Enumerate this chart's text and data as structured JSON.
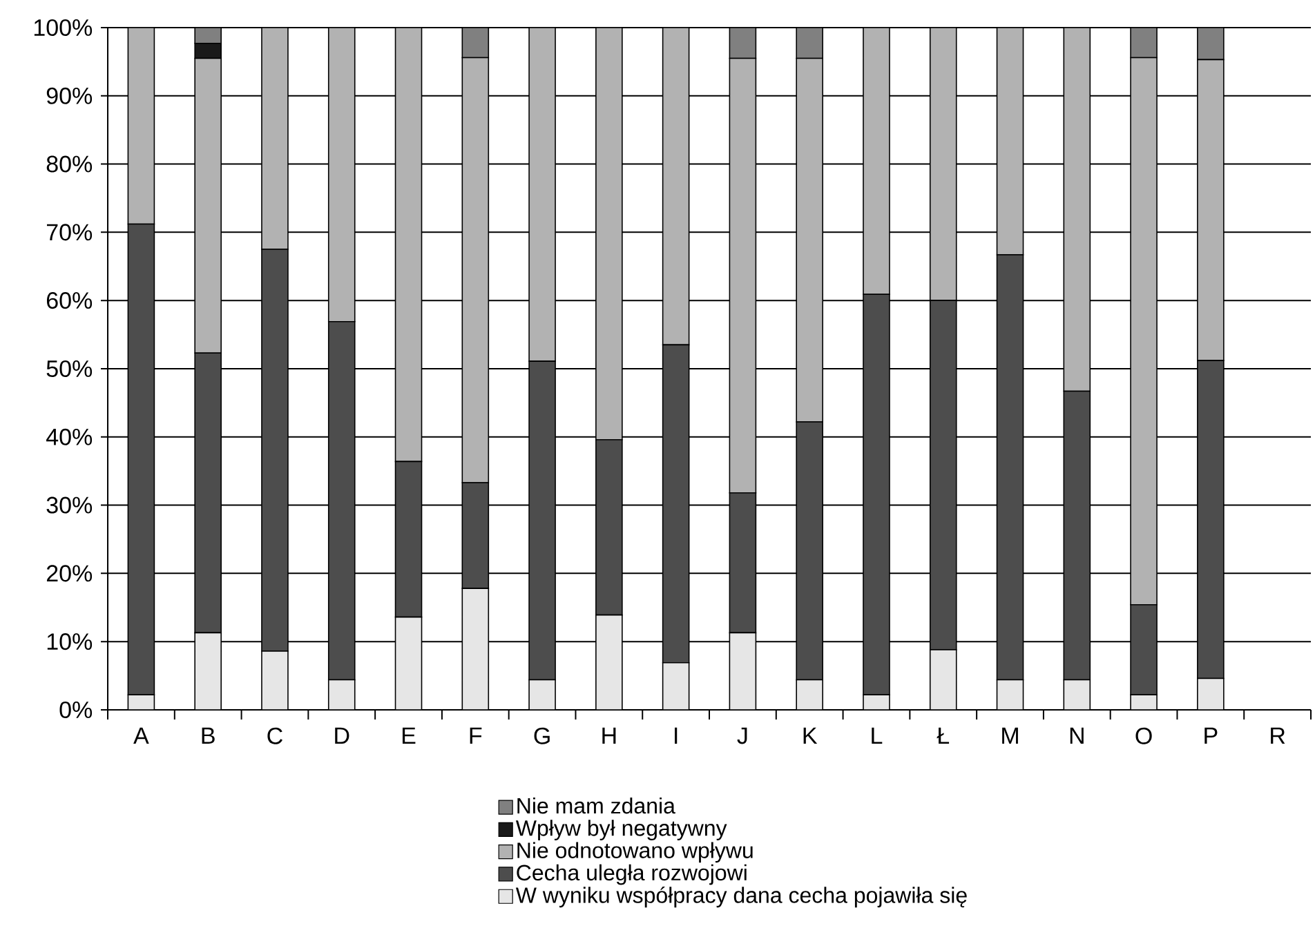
{
  "chart_data": {
    "type": "bar",
    "stacked": true,
    "categories": [
      "A",
      "B",
      "C",
      "D",
      "E",
      "F",
      "G",
      "H",
      "I",
      "J",
      "K",
      "L",
      "Ł",
      "M",
      "N",
      "O",
      "P",
      "R"
    ],
    "series": [
      {
        "name": "W wyniku współpracy dana cecha pojawiła się",
        "color": "#e6e6e6",
        "values": [
          2.2,
          11.3,
          8.6,
          4.4,
          13.6,
          17.8,
          4.4,
          13.9,
          6.9,
          11.3,
          4.4,
          2.2,
          8.8,
          4.4,
          4.4,
          2.2,
          4.6,
          null
        ]
      },
      {
        "name": "Cecha uległa rozwojowi",
        "color": "#4d4d4d",
        "values": [
          69,
          41,
          58.9,
          52.5,
          22.8,
          15.5,
          46.7,
          25.7,
          46.6,
          20.5,
          37.8,
          58.7,
          51.2,
          62.3,
          42.3,
          13.2,
          46.6,
          null
        ]
      },
      {
        "name": "Nie odnotowano wpływu",
        "color": "#b2b2b2",
        "values": [
          28.8,
          43.2,
          32.5,
          43.1,
          63.6,
          62.3,
          48.9,
          60.4,
          46.5,
          63.7,
          53.3,
          39.1,
          40,
          33.3,
          53.3,
          80.2,
          44.1,
          null
        ]
      },
      {
        "name": "Wpływ był negatywny",
        "color": "#1a1a1a",
        "values": [
          0,
          2.2,
          0,
          0,
          0,
          0,
          0,
          0,
          0,
          0,
          0,
          0,
          0,
          0,
          0,
          0,
          0,
          null
        ]
      },
      {
        "name": "Nie mam zdania",
        "color": "#808080",
        "values": [
          0,
          2.3,
          0,
          0,
          0,
          4.4,
          0,
          0,
          0,
          4.5,
          4.5,
          0,
          0,
          0,
          0,
          4.4,
          4.7,
          null
        ]
      }
    ],
    "ylim": [
      0,
      100
    ],
    "yticks": [
      {
        "value": 0,
        "label": "0%"
      },
      {
        "value": 10,
        "label": "10%"
      },
      {
        "value": 20,
        "label": "20%"
      },
      {
        "value": 30,
        "label": "30%"
      },
      {
        "value": 40,
        "label": "40%"
      },
      {
        "value": 50,
        "label": "50%"
      },
      {
        "value": 60,
        "label": "60%"
      },
      {
        "value": 70,
        "label": "70%"
      },
      {
        "value": 80,
        "label": "80%"
      },
      {
        "value": 90,
        "label": "90%"
      },
      {
        "value": 100,
        "label": "100%"
      }
    ],
    "grid": "y",
    "legend": "bottom"
  }
}
